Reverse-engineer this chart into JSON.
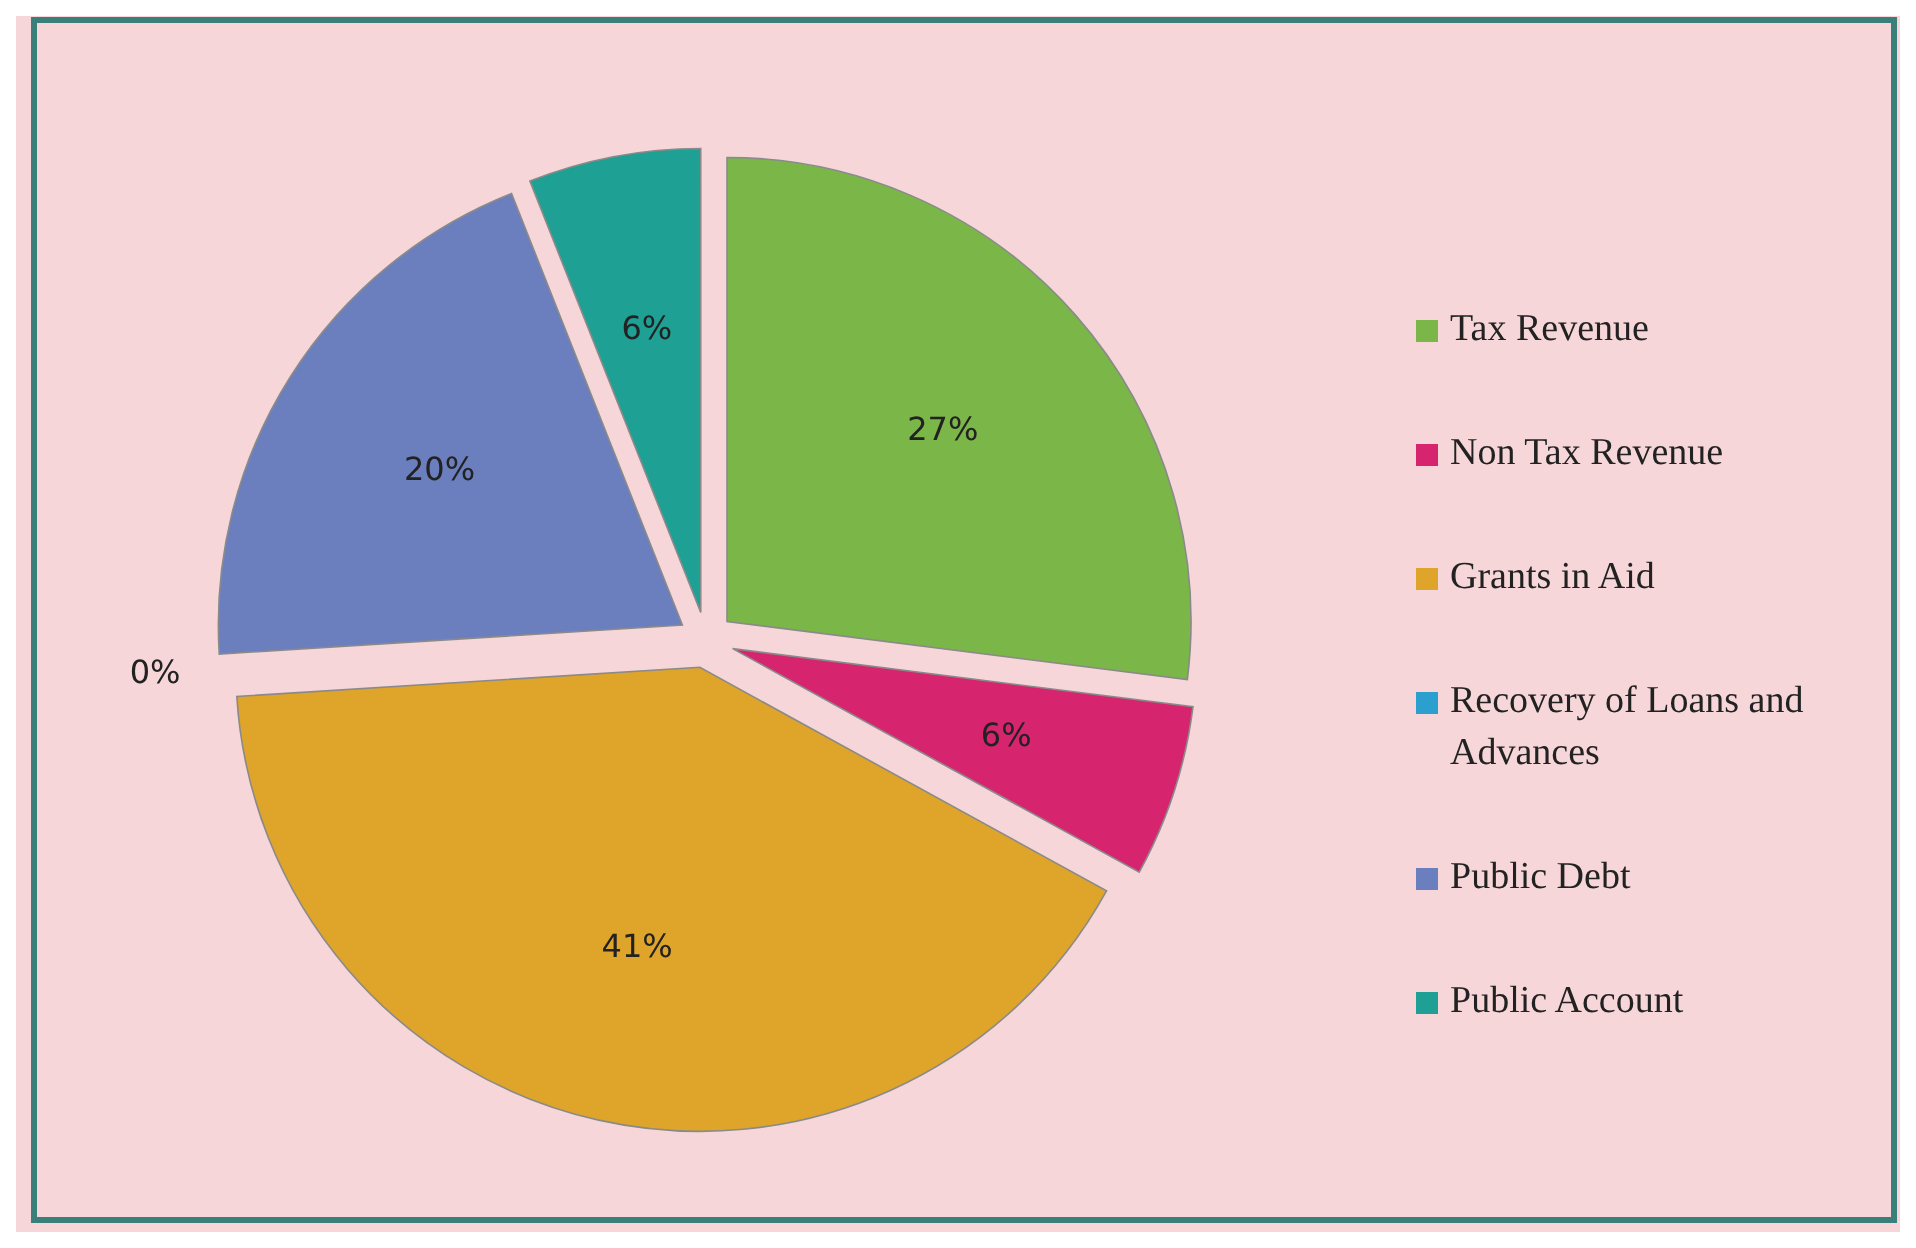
{
  "chart_data": {
    "type": "pie",
    "categories": [
      "Tax Revenue",
      "Non Tax Revenue",
      "Grants in Aid",
      "Recovery of Loans and Advances",
      "Public Debt",
      "Public Account"
    ],
    "values": [
      27,
      6,
      41,
      0,
      20,
      6
    ],
    "colors": [
      "#7ab648",
      "#d6246e",
      "#dfa42a",
      "#2b9fce",
      "#6b7fbe",
      "#1fa095"
    ],
    "value_labels": [
      "27%",
      "6%",
      "41%",
      "0%",
      "20%",
      "6%"
    ],
    "legend": "right"
  }
}
